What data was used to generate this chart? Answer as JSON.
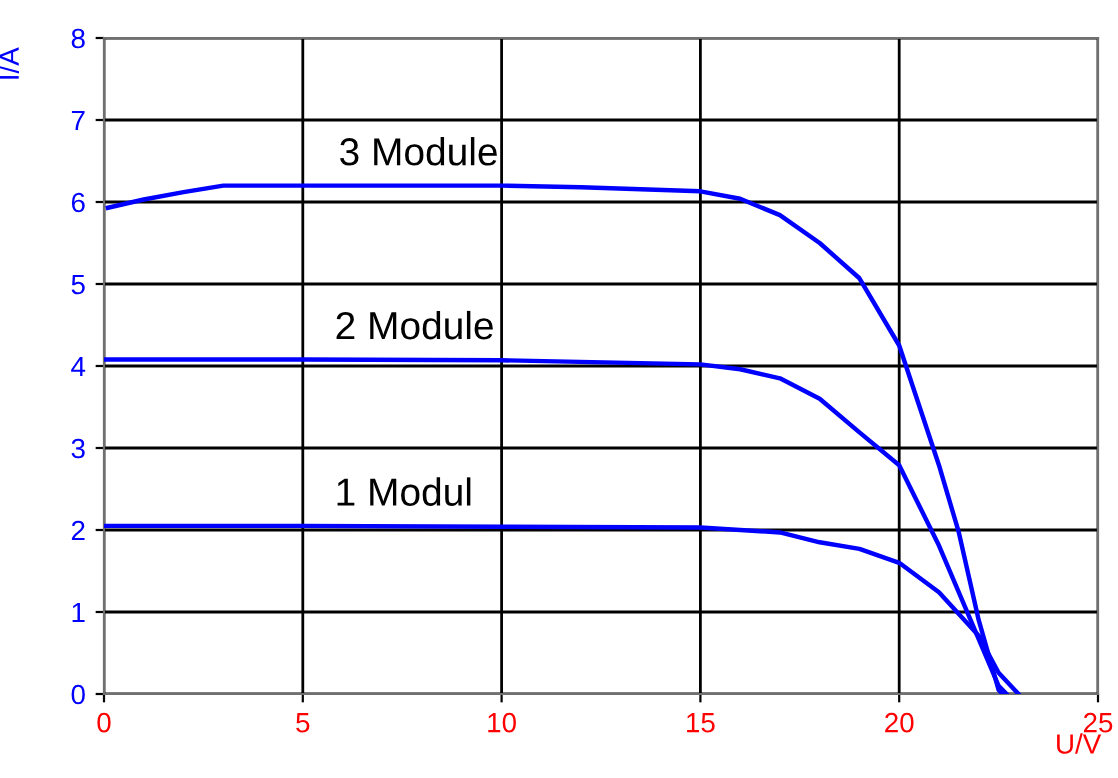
{
  "chart_data": {
    "type": "line",
    "xlabel": "U/V",
    "ylabel": "I/A",
    "xlim": [
      0,
      25
    ],
    "ylim": [
      0,
      8
    ],
    "xticks": [
      0,
      5,
      10,
      15,
      20,
      25
    ],
    "yticks": [
      0,
      1,
      2,
      3,
      4,
      5,
      6,
      7,
      8
    ],
    "grid": true,
    "marker": "none",
    "line_style": "solid",
    "legend": false,
    "series": [
      {
        "name": "3 Module",
        "color": "#0000ff",
        "x": [
          0.1,
          1,
          2,
          3,
          5,
          10,
          12,
          15,
          16,
          17,
          18,
          19,
          20,
          21,
          21.5,
          22,
          22.5,
          22.6
        ],
        "values": [
          5.93,
          6.03,
          6.12,
          6.2,
          6.2,
          6.2,
          6.18,
          6.13,
          6.04,
          5.84,
          5.5,
          5.07,
          4.25,
          2.79,
          1.97,
          0.9,
          0.05,
          0
        ]
      },
      {
        "name": "2 Module",
        "color": "#0000ff",
        "x": [
          0,
          5,
          10,
          15,
          16,
          17,
          18,
          19,
          20,
          21,
          22,
          22.5,
          22.7
        ],
        "values": [
          4.08,
          4.08,
          4.07,
          4.02,
          3.96,
          3.85,
          3.6,
          3.19,
          2.79,
          1.81,
          0.67,
          0.1,
          0
        ]
      },
      {
        "name": "1 Modul",
        "color": "#0000ff",
        "x": [
          0,
          5,
          10,
          15,
          17,
          18,
          19,
          20,
          21,
          22,
          22.5,
          23
        ],
        "values": [
          2.05,
          2.05,
          2.04,
          2.03,
          1.97,
          1.85,
          1.77,
          1.6,
          1.24,
          0.71,
          0.26,
          0
        ]
      }
    ]
  }
}
